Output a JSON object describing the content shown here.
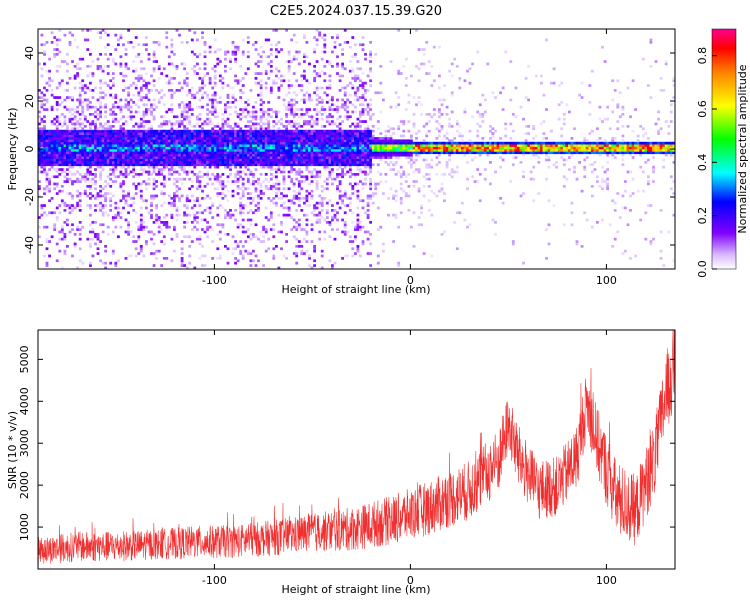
{
  "figure_title": "C2E5.2024.037.15.39.G20",
  "colors": {
    "line": "#f03030",
    "axis": "#000000",
    "background": "#ffffff"
  },
  "chart_data": [
    {
      "type": "heatmap",
      "title": "C2E5.2024.037.15.39.G20",
      "xlabel": "Height of straight line (km)",
      "ylabel": "Frequency (Hz)",
      "xlim": [
        -190,
        135
      ],
      "ylim": [
        -50,
        50
      ],
      "x_ticks": [
        -100,
        0,
        100
      ],
      "y_ticks": [
        -40,
        -20,
        0,
        20,
        40
      ],
      "colorbar": {
        "label": "Normalized spectral amplitude",
        "range": [
          0.0,
          0.9
        ],
        "ticks": [
          "0.0",
          "0.2",
          "0.4",
          "0.6",
          "0.8"
        ]
      },
      "features": {
        "main_band_center_hz": 0,
        "band_halfwidth_hz_below_minus20km": 8,
        "band_halfwidth_hz_above_0km": 3,
        "peak_amplitude_in_band_above_0km": 0.85
      }
    },
    {
      "type": "line",
      "xlabel": "Height of straight line (km)",
      "ylabel": "SNR (10 * v/v)",
      "xlim": [
        -190,
        135
      ],
      "ylim": [
        0,
        5700
      ],
      "x_ticks": [
        -100,
        0,
        100
      ],
      "y_ticks": [
        1000,
        2000,
        3000,
        4000,
        5000
      ],
      "envelope": {
        "x": [
          -190,
          -170,
          -150,
          -130,
          -110,
          -90,
          -70,
          -50,
          -30,
          -10,
          10,
          30,
          45,
          50,
          55,
          65,
          75,
          85,
          90,
          95,
          105,
          115,
          125,
          130,
          135
        ],
        "mean": [
          400,
          500,
          500,
          550,
          600,
          620,
          700,
          820,
          900,
          1100,
          1400,
          1800,
          2500,
          3400,
          2600,
          1800,
          1900,
          2600,
          3900,
          3000,
          1600,
          1300,
          2600,
          4000,
          4800
        ],
        "spread": [
          500,
          550,
          550,
          550,
          600,
          600,
          650,
          700,
          800,
          900,
          1000,
          1100,
          1200,
          1100,
          1200,
          1100,
          1100,
          1200,
          1200,
          1300,
          1400,
          1300,
          1400,
          1500,
          1600
        ]
      }
    }
  ]
}
